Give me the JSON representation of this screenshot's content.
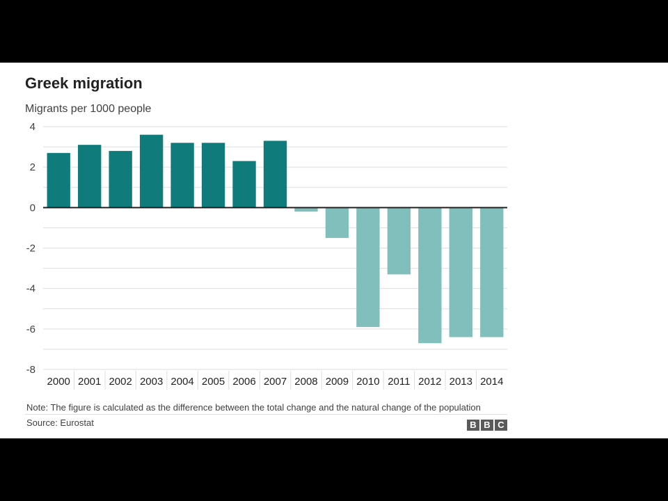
{
  "chart_data": {
    "type": "bar",
    "title": "Greek migration",
    "ylabel": "Migrants per 1000 people",
    "xlabel": "",
    "categories": [
      "2000",
      "2001",
      "2002",
      "2003",
      "2004",
      "2005",
      "2006",
      "2007",
      "2008",
      "2009",
      "2010",
      "2011",
      "2012",
      "2013",
      "2014"
    ],
    "values": [
      2.7,
      3.1,
      2.8,
      3.6,
      3.2,
      3.2,
      2.3,
      3.3,
      -0.2,
      -1.5,
      -5.9,
      -3.3,
      -6.7,
      -6.4,
      -6.4
    ],
    "ylim": [
      -8,
      4
    ],
    "yticks": [
      "4",
      "2",
      "0",
      "-2",
      "-4",
      "-6",
      "-8"
    ],
    "grid": true,
    "colors": {
      "positive": "#0f7b7b",
      "negative": "#80bfbc",
      "grid": "#dddddd",
      "zero_line": "#222222"
    }
  },
  "footer": {
    "note": "Note: The figure is calculated as the difference between the total change and the natural change of the population",
    "source": "Source: Eurostat",
    "logo": "BBC"
  }
}
